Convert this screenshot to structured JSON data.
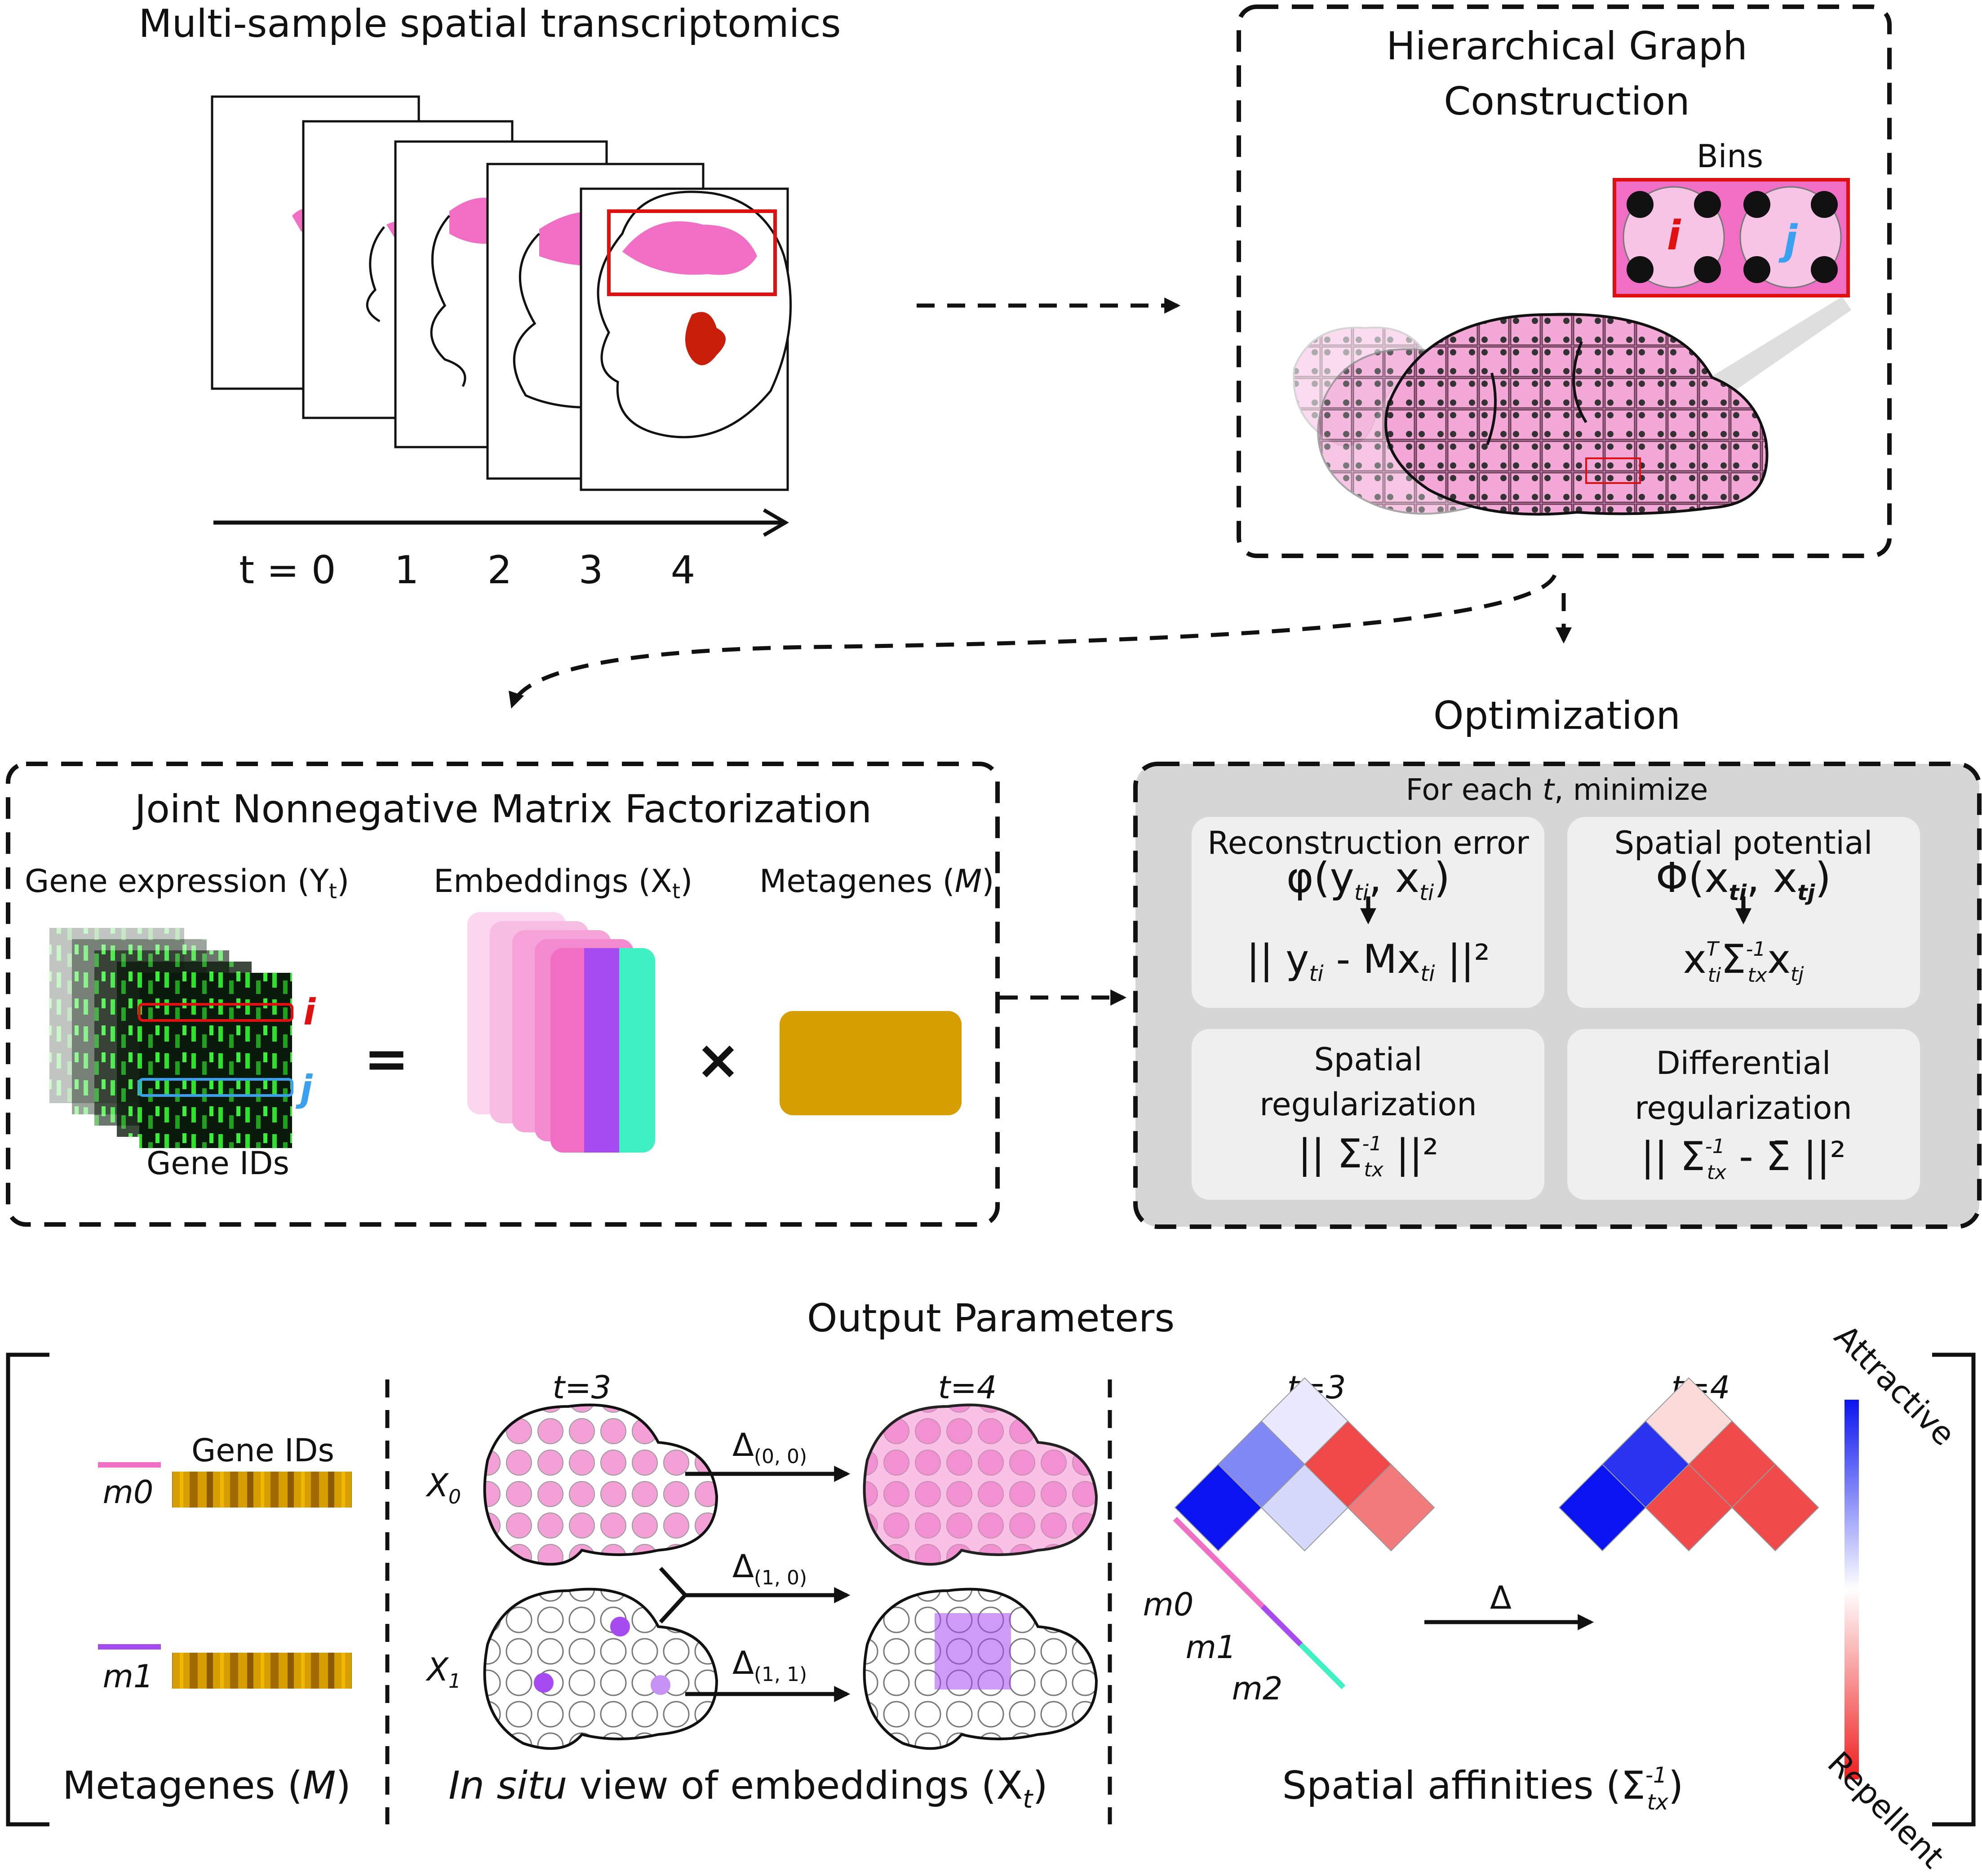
{
  "stage1": {
    "title": "Multi-sample spatial transcriptomics",
    "timepoints": [
      "t = 0",
      "1",
      "2",
      "3",
      "4"
    ]
  },
  "stage2": {
    "title_line1": "Hierarchical Graph",
    "title_line2": "Construction",
    "bins_label": "Bins",
    "bin_i": "i",
    "bin_j": "j"
  },
  "stage3": {
    "title": "Joint Nonnegative Matrix Factorization",
    "gene_expression_label": "Gene expression (Y",
    "gene_expression_sub": "t",
    "embeddings_label": "Embeddings (X",
    "embeddings_sub": "t",
    "metagenes_label": "Metagenes (",
    "metagenes_symbol": "M",
    "gene_ids": "Gene IDs",
    "row_i": "i",
    "row_j": "j",
    "equals": "=",
    "times": "×"
  },
  "stage4": {
    "title": "Optimization",
    "subtitle_pre": "For each ",
    "subtitle_var": "t",
    "subtitle_post": ", minimize",
    "cells": [
      {
        "label": "Reconstruction error",
        "formula_a": "φ(y",
        "formula_b": "|| y",
        "formula_c": " - Mx",
        "formula_d": " ||²"
      },
      {
        "label": "Spatial potential",
        "formula_a": "Φ(x",
        "formula_b": "x",
        "formula_c": "Σ",
        "formula_d": "x"
      },
      {
        "label_line1": "Spatial",
        "label_line2": "regularization",
        "formula": "|| Σ",
        "formula_end": " ||²"
      },
      {
        "label_line1": "Differential",
        "label_line2": "regularization",
        "formula": "|| Σ",
        "formula_mid": " - Σ̄",
        "formula_end": " ||²"
      }
    ]
  },
  "outputs": {
    "title": "Output Parameters",
    "metagenes": {
      "gene_ids": "Gene IDs",
      "m0": "m0",
      "m1": "m1",
      "caption_pre": "Metagenes (",
      "caption_symbol": "M",
      "caption_post": ")"
    },
    "embeddings": {
      "t3": "t=3",
      "t4": "t=4",
      "x0": "X",
      "x0_sub": "0",
      "x1": "X",
      "x1_sub": "1",
      "d00": "(0, 0)",
      "d10": "(1, 0)",
      "d11": "(1, 1)",
      "delta": "Δ",
      "caption_it": "In situ",
      "caption_rest": " view of embeddings (X",
      "caption_sub": "t"
    },
    "affinities": {
      "t3": "t=3",
      "t4": "t=4",
      "m0": "m0",
      "m1": "m1",
      "m2": "m2",
      "delta": "Δ",
      "caption": "Spatial affinities (Σ",
      "caption_sub": "tx",
      "caption_sup": "-1",
      "attractive": "Attractive",
      "repellent": "Repellent"
    }
  },
  "colors": {
    "pink": "#f06ec4",
    "light_pink": "#f8bde3",
    "purple": "#a64bf0",
    "teal": "#3ff0c3",
    "gold": "#d69e00",
    "red_blob": "#c81e0a",
    "attract_blue": "#0a14f0",
    "repel_red": "#f01e1e"
  }
}
